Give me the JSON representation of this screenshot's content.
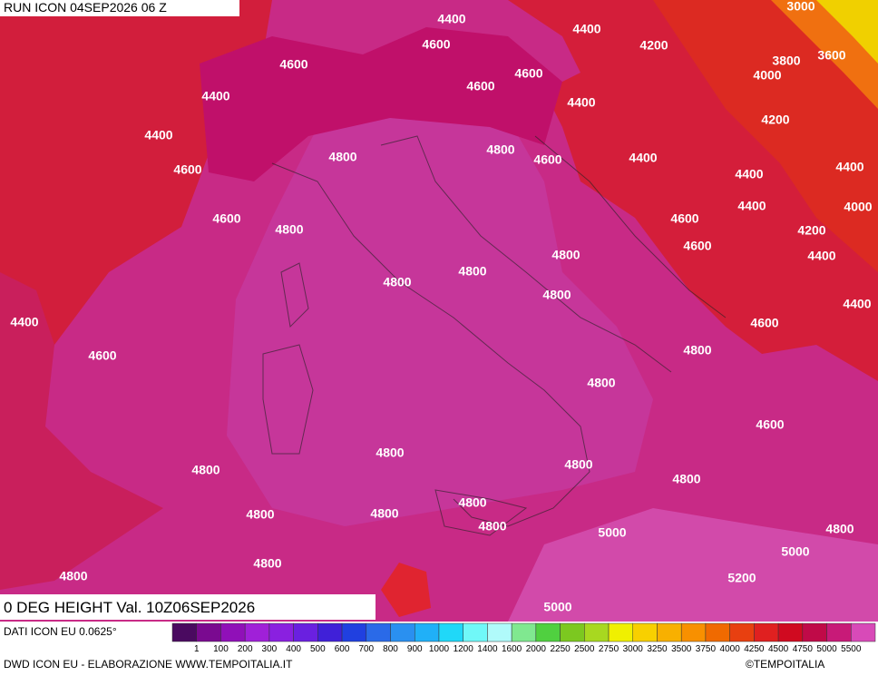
{
  "header": {
    "run": "RUN ICON 04SEP2026 06 Z",
    "field": "0 DEG HEIGHT Val. 10Z06SEP2026"
  },
  "contour_labels": [
    "4400",
    "4400",
    "4600",
    "4200",
    "3000",
    "3600",
    "3800",
    "4000",
    "4600",
    "4600",
    "4600",
    "4400",
    "4400",
    "4200",
    "4400",
    "4800",
    "4800",
    "4600",
    "4400",
    "4400",
    "4400",
    "4600",
    "4400",
    "4000",
    "4600",
    "4600",
    "4800",
    "4200",
    "4600",
    "4800",
    "4400",
    "4800",
    "4800",
    "4800",
    "4400",
    "4400",
    "4600",
    "4800",
    "4600",
    "4800",
    "4600",
    "4800",
    "4800",
    "4800",
    "4800",
    "4800",
    "4800",
    "4800",
    "4800",
    "5000",
    "4800",
    "5000",
    "4800",
    "4800",
    "5200",
    "5000"
  ],
  "legend": {
    "labels": [
      1,
      100,
      200,
      300,
      400,
      500,
      600,
      700,
      800,
      900,
      1000,
      1200,
      1400,
      1600,
      2000,
      2250,
      2500,
      2750,
      3000,
      3250,
      3500,
      3750,
      4000,
      4250,
      4500,
      4750,
      5000,
      5500
    ],
    "colors": [
      "#4a0a60",
      "#7a0a90",
      "#9010b8",
      "#a020d8",
      "#8a20e0",
      "#6a20e0",
      "#4020d8",
      "#2040e0",
      "#2a6ae8",
      "#2a90f0",
      "#20b0f8",
      "#20d8f8",
      "#70f8f8",
      "#b0fafa",
      "#80e890",
      "#50d040",
      "#7cc820",
      "#a8d820",
      "#f0f000",
      "#f8d000",
      "#f8b000",
      "#f89000",
      "#f06a00",
      "#e84010",
      "#e02020",
      "#d00a20",
      "#c00a48",
      "#c81a78",
      "#d84ab8"
    ]
  },
  "footer": {
    "source": "DATI ICON EU 0.0625°",
    "credit": "DWD ICON EU - ELABORAZIONE WWW.TEMPOITALIA.IT",
    "copyright": "©TEMPOITALIA"
  }
}
